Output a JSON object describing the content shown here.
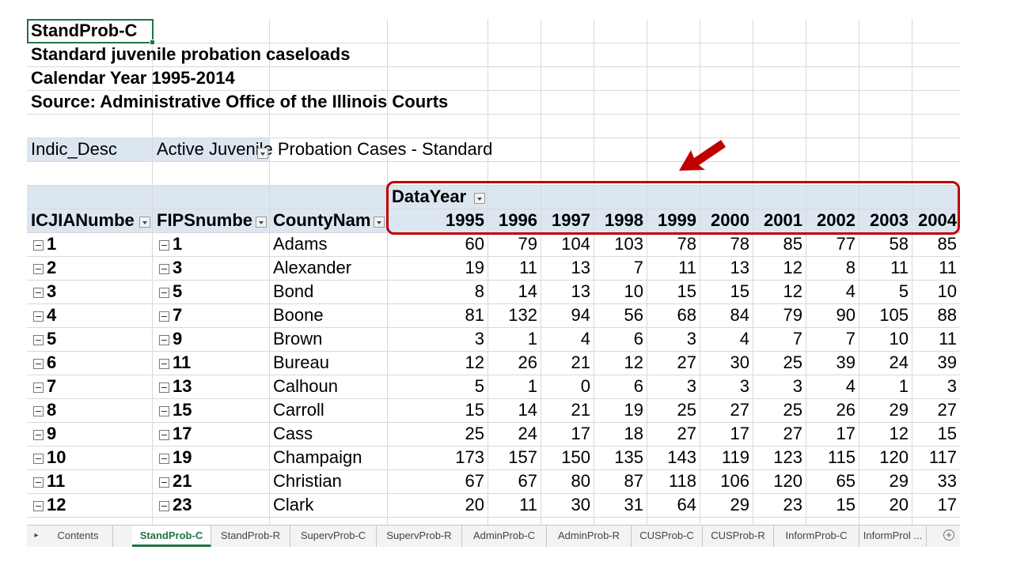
{
  "title_block": {
    "a1": "StandProb-C",
    "a2": "Standard juvenile probation caseloads",
    "a3": "Calendar Year 1995-2014",
    "a4": "Source: Administrative Office of the Illinois Courts"
  },
  "filter": {
    "label": "Indic_Desc",
    "value": "Active Juvenile Probation Cases - Standard"
  },
  "pivot": {
    "col_field": "DataYear",
    "row_headers": [
      "ICJIANumbe",
      "FIPSnumbe",
      "CountyNam"
    ],
    "years": [
      "1995",
      "1996",
      "1997",
      "1998",
      "1999",
      "2000",
      "2001",
      "2002",
      "2003",
      "2004"
    ],
    "rows": [
      {
        "icjia": "1",
        "fips": "1",
        "county": "Adams",
        "v": [
          "60",
          "79",
          "104",
          "103",
          "78",
          "78",
          "85",
          "77",
          "58",
          "85"
        ]
      },
      {
        "icjia": "2",
        "fips": "3",
        "county": "Alexander",
        "v": [
          "19",
          "11",
          "13",
          "7",
          "11",
          "13",
          "12",
          "8",
          "11",
          "11"
        ]
      },
      {
        "icjia": "3",
        "fips": "5",
        "county": "Bond",
        "v": [
          "8",
          "14",
          "13",
          "10",
          "15",
          "15",
          "12",
          "4",
          "5",
          "10"
        ]
      },
      {
        "icjia": "4",
        "fips": "7",
        "county": "Boone",
        "v": [
          "81",
          "132",
          "94",
          "56",
          "68",
          "84",
          "79",
          "90",
          "105",
          "88"
        ]
      },
      {
        "icjia": "5",
        "fips": "9",
        "county": "Brown",
        "v": [
          "3",
          "1",
          "4",
          "6",
          "3",
          "4",
          "7",
          "7",
          "10",
          "11"
        ]
      },
      {
        "icjia": "6",
        "fips": "11",
        "county": "Bureau",
        "v": [
          "12",
          "26",
          "21",
          "12",
          "27",
          "30",
          "25",
          "39",
          "24",
          "39"
        ]
      },
      {
        "icjia": "7",
        "fips": "13",
        "county": "Calhoun",
        "v": [
          "5",
          "1",
          "0",
          "6",
          "3",
          "3",
          "3",
          "4",
          "1",
          "3"
        ]
      },
      {
        "icjia": "8",
        "fips": "15",
        "county": "Carroll",
        "v": [
          "15",
          "14",
          "21",
          "19",
          "25",
          "27",
          "25",
          "26",
          "29",
          "27"
        ]
      },
      {
        "icjia": "9",
        "fips": "17",
        "county": "Cass",
        "v": [
          "25",
          "24",
          "17",
          "18",
          "27",
          "17",
          "27",
          "17",
          "12",
          "15"
        ]
      },
      {
        "icjia": "10",
        "fips": "19",
        "county": "Champaign",
        "v": [
          "173",
          "157",
          "150",
          "135",
          "143",
          "119",
          "123",
          "115",
          "120",
          "117"
        ]
      },
      {
        "icjia": "11",
        "fips": "21",
        "county": "Christian",
        "v": [
          "67",
          "67",
          "80",
          "87",
          "118",
          "106",
          "120",
          "65",
          "29",
          "33"
        ]
      },
      {
        "icjia": "12",
        "fips": "23",
        "county": "Clark",
        "v": [
          "20",
          "11",
          "30",
          "31",
          "64",
          "29",
          "23",
          "15",
          "20",
          "17"
        ]
      }
    ]
  },
  "sheet_tabs": [
    "Contents",
    "StandProb-C",
    "StandProb-R",
    "SupervProb-C",
    "SupervProb-R",
    "AdminProb-C",
    "AdminProb-R",
    "CUSProb-C",
    "CUSProb-R",
    "InformProb-C",
    "InformProl ..."
  ],
  "active_tab": "StandProb-C",
  "colors": {
    "header_band": "#dce6f1",
    "annotation": "#c00000",
    "excel_green": "#217346"
  },
  "icons": {
    "nav": "scroll-right-icon",
    "add": "add-sheet-icon",
    "arrow": "annotation-arrow-icon"
  }
}
